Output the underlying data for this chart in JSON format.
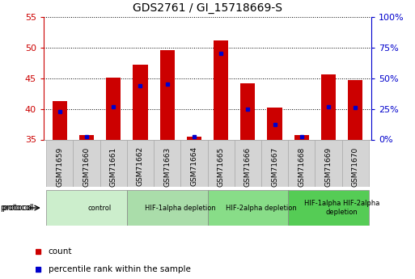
{
  "title": "GDS2761 / GI_15718669-S",
  "samples": [
    "GSM71659",
    "GSM71660",
    "GSM71661",
    "GSM71662",
    "GSM71663",
    "GSM71664",
    "GSM71665",
    "GSM71666",
    "GSM71667",
    "GSM71668",
    "GSM71669",
    "GSM71670"
  ],
  "count_values": [
    41.3,
    35.7,
    45.1,
    47.2,
    49.5,
    35.4,
    51.2,
    44.1,
    40.2,
    35.7,
    45.6,
    44.7
  ],
  "percentile_values": [
    23,
    2,
    27,
    44,
    45,
    2,
    70,
    25,
    12,
    2,
    27,
    26
  ],
  "ylim_left": [
    35,
    55
  ],
  "ylim_right": [
    0,
    100
  ],
  "yticks_left": [
    35,
    40,
    45,
    50,
    55
  ],
  "yticks_right": [
    0,
    25,
    50,
    75,
    100
  ],
  "ytick_labels_right": [
    "0%",
    "25%",
    "50%",
    "75%",
    "100%"
  ],
  "bar_color": "#cc0000",
  "dot_color": "#0000cc",
  "plot_bg_color": "#ffffff",
  "sample_box_color": "#d4d4d4",
  "groups": [
    {
      "label": "control",
      "start": 0,
      "end": 3,
      "color": "#cceecc"
    },
    {
      "label": "HIF-1alpha depletion",
      "start": 3,
      "end": 6,
      "color": "#aaddaa"
    },
    {
      "label": "HIF-2alpha depletion",
      "start": 6,
      "end": 9,
      "color": "#88dd88"
    },
    {
      "label": "HIF-1alpha HIF-2alpha\ndepletion",
      "start": 9,
      "end": 12,
      "color": "#55cc55"
    }
  ],
  "legend_count_label": "count",
  "legend_pct_label": "percentile rank within the sample",
  "protocol_label": "protocol",
  "left_tick_color": "#cc0000",
  "right_tick_color": "#0000cc",
  "title_fontsize": 10,
  "axis_fontsize": 8,
  "sample_fontsize": 6.5,
  "group_fontsize": 6,
  "legend_fontsize": 7.5,
  "bar_width": 0.55
}
